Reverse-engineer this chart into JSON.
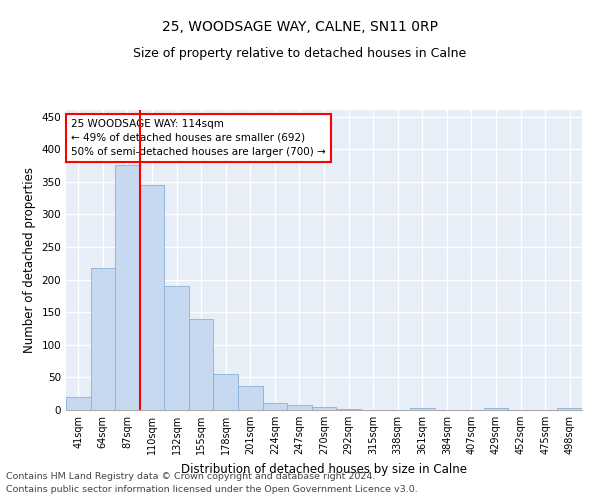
{
  "title": "25, WOODSAGE WAY, CALNE, SN11 0RP",
  "subtitle": "Size of property relative to detached houses in Calne",
  "xlabel": "Distribution of detached houses by size in Calne",
  "ylabel": "Number of detached properties",
  "categories": [
    "41sqm",
    "64sqm",
    "87sqm",
    "110sqm",
    "132sqm",
    "155sqm",
    "178sqm",
    "201sqm",
    "224sqm",
    "247sqm",
    "270sqm",
    "292sqm",
    "315sqm",
    "338sqm",
    "361sqm",
    "384sqm",
    "407sqm",
    "429sqm",
    "452sqm",
    "475sqm",
    "498sqm"
  ],
  "values": [
    20,
    217,
    375,
    345,
    190,
    140,
    55,
    37,
    10,
    7,
    5,
    1,
    0,
    0,
    3,
    0,
    0,
    3,
    0,
    0,
    3
  ],
  "bar_color": "#c6d9f1",
  "bar_edge_color": "#8ab0d8",
  "annotation_text": "25 WOODSAGE WAY: 114sqm\n← 49% of detached houses are smaller (692)\n50% of semi-detached houses are larger (700) →",
  "annotation_box_color": "white",
  "annotation_box_edge_color": "red",
  "vline_color": "red",
  "vline_x": 2.5,
  "ylim": [
    0,
    460
  ],
  "yticks": [
    0,
    50,
    100,
    150,
    200,
    250,
    300,
    350,
    400,
    450
  ],
  "bg_color": "#e8eef8",
  "grid_color": "white",
  "footer1": "Contains HM Land Registry data © Crown copyright and database right 2024.",
  "footer2": "Contains public sector information licensed under the Open Government Licence v3.0.",
  "title_fontsize": 10,
  "subtitle_fontsize": 9,
  "axis_label_fontsize": 8.5,
  "tick_fontsize": 7,
  "annotation_fontsize": 7.5,
  "footer_fontsize": 6.8
}
